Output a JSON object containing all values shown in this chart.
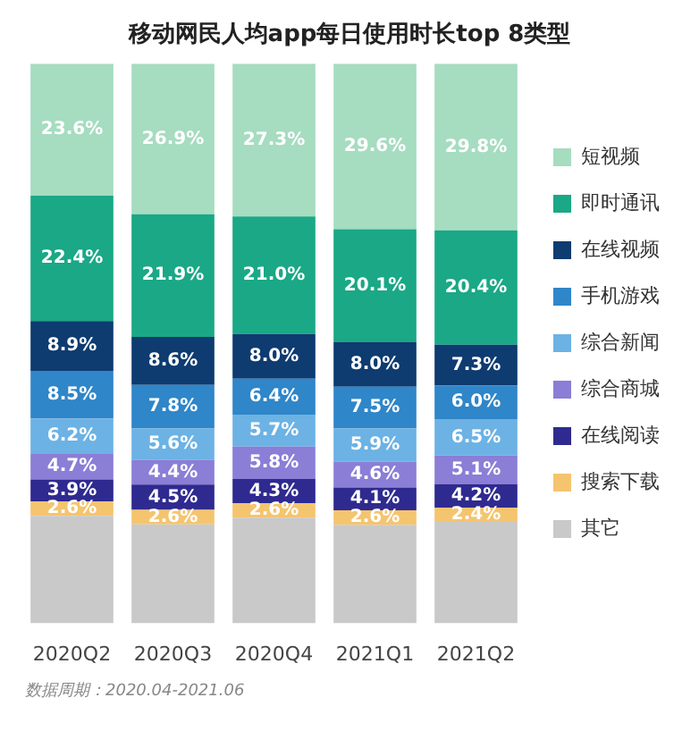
{
  "chart_data": {
    "type": "bar",
    "title": "移动网民人均app每日使用时长top 8类型",
    "categories": [
      "2020Q2",
      "2020Q3",
      "2020Q4",
      "2021Q1",
      "2021Q2"
    ],
    "stacked": true,
    "tick_labels": "x",
    "grid": false,
    "legend": "right",
    "annotations": [
      "数据周期：2020.04-2021.06"
    ],
    "series": [
      {
        "name": "其它",
        "color": "#c9c9c9",
        "values": [
          19.2,
          17.7,
          18.9,
          17.6,
          18.3
        ],
        "value_labels": [
          null,
          null,
          null,
          null,
          null
        ]
      },
      {
        "name": "搜索下载",
        "color": "#f5c46e",
        "values": [
          2.6,
          2.6,
          2.6,
          2.6,
          2.4
        ],
        "value_labels": [
          "2.6%",
          "2.6%",
          "2.6%",
          "2.6%",
          "2.4%"
        ]
      },
      {
        "name": "在线阅读",
        "color": "#2f2a8f",
        "values": [
          3.9,
          4.5,
          4.3,
          4.1,
          4.2
        ],
        "value_labels": [
          "3.9%",
          "4.5%",
          "4.3%",
          "4.1%",
          "4.2%"
        ]
      },
      {
        "name": "综合商城",
        "color": "#8a7ed6",
        "values": [
          4.7,
          4.4,
          5.8,
          4.6,
          5.1
        ],
        "value_labels": [
          "4.7%",
          "4.4%",
          "5.8%",
          "4.6%",
          "5.1%"
        ]
      },
      {
        "name": "综合新闻",
        "color": "#6cb2e4",
        "values": [
          6.2,
          5.6,
          5.7,
          5.9,
          6.5
        ],
        "value_labels": [
          "6.2%",
          "5.6%",
          "5.7%",
          "5.9%",
          "6.5%"
        ]
      },
      {
        "name": "手机游戏",
        "color": "#2f86c8",
        "values": [
          8.5,
          7.8,
          6.4,
          7.5,
          6.0
        ],
        "value_labels": [
          "8.5%",
          "7.8%",
          "6.4%",
          "7.5%",
          "6.0%"
        ]
      },
      {
        "name": "在线视频",
        "color": "#0e3b70",
        "values": [
          8.9,
          8.6,
          8.0,
          8.0,
          7.3
        ],
        "value_labels": [
          "8.9%",
          "8.6%",
          "8.0%",
          "8.0%",
          "7.3%"
        ]
      },
      {
        "name": "即时通讯",
        "color": "#1aa886",
        "values": [
          22.4,
          21.9,
          21.0,
          20.1,
          20.4
        ],
        "value_labels": [
          "22.4%",
          "21.9%",
          "21.0%",
          "20.1%",
          "20.4%"
        ]
      },
      {
        "name": "短视频",
        "color": "#a6dcc0",
        "values": [
          23.6,
          26.9,
          27.3,
          29.6,
          29.8
        ],
        "value_labels": [
          "23.6%",
          "26.9%",
          "27.3%",
          "29.6%",
          "29.8%"
        ]
      }
    ]
  }
}
